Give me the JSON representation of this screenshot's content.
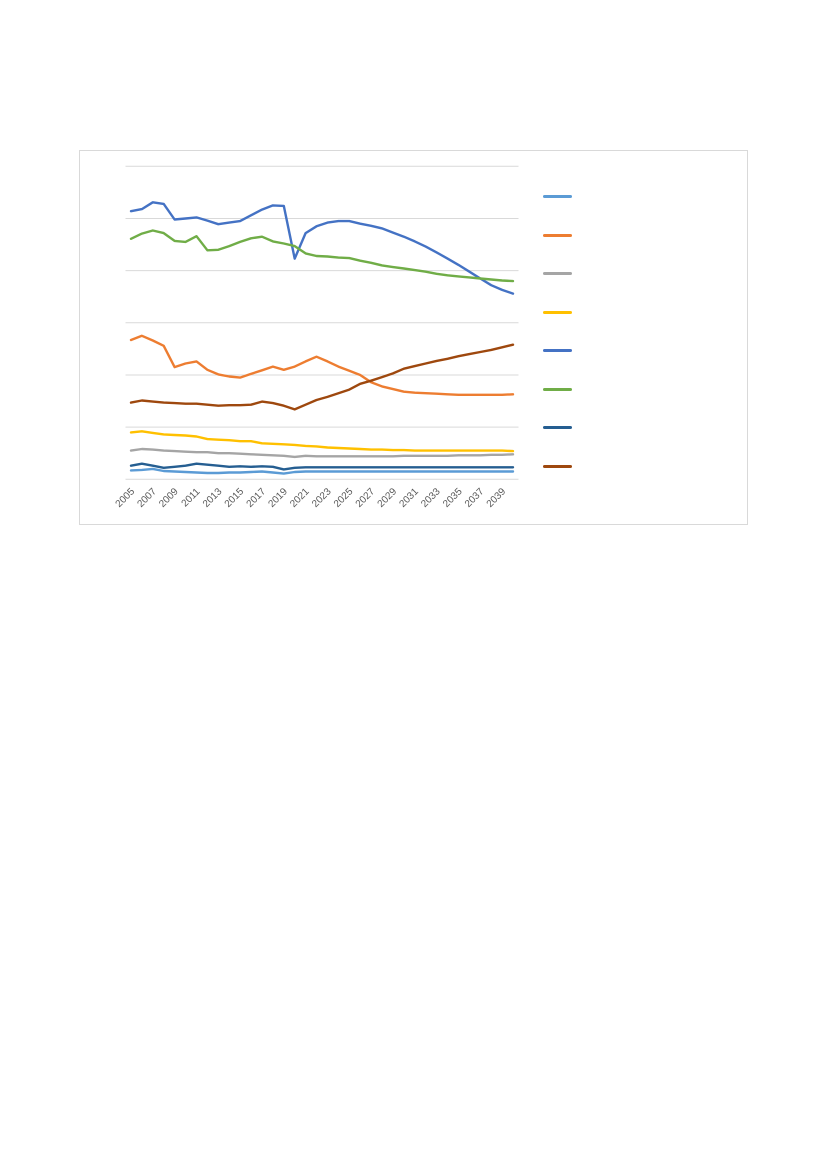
{
  "page": {
    "background": "#FFFFFF"
  },
  "chart_panel": {
    "border_color": "#D9D9D9",
    "background": "#FFFFFF"
  },
  "chart_data": {
    "type": "line",
    "title": "",
    "xlabel": "",
    "ylabel": "",
    "x_years": [
      2005,
      2006,
      2007,
      2008,
      2009,
      2010,
      2011,
      2012,
      2013,
      2014,
      2015,
      2016,
      2017,
      2018,
      2019,
      2020,
      2021,
      2022,
      2023,
      2024,
      2025,
      2026,
      2027,
      2028,
      2029,
      2030,
      2031,
      2032,
      2033,
      2034,
      2035,
      2036,
      2037,
      2038,
      2039,
      2040
    ],
    "x_tick_labels": [
      "2005",
      "2007",
      "2009",
      "2011",
      "2013",
      "2015",
      "2017",
      "2019",
      "2021",
      "2023",
      "2025",
      "2027",
      "2029",
      "2031",
      "2033",
      "2035",
      "2037",
      "2039"
    ],
    "x_tick_every": 2,
    "y_axis": {
      "min": 0,
      "max": 6,
      "gridline_step": 1,
      "labels_visible": false,
      "note": "no numeric y-axis labels shown; values estimated in gridline units (1 unit = one gridline interval)"
    },
    "grid": {
      "horizontal": true,
      "vertical": false,
      "color": "#D9D9D9"
    },
    "axis_line_color": "#D9D9D9",
    "tick_label_color": "#595959",
    "legend": {
      "position": "right",
      "labels_visible": false
    },
    "series": [
      {
        "name": "light-blue-series",
        "legend_label": "",
        "color": "#5B9BD5",
        "values": [
          0.17,
          0.18,
          0.2,
          0.16,
          0.15,
          0.14,
          0.13,
          0.12,
          0.12,
          0.13,
          0.13,
          0.14,
          0.15,
          0.13,
          0.11,
          0.14,
          0.15,
          0.15,
          0.15,
          0.15,
          0.15,
          0.15,
          0.15,
          0.15,
          0.15,
          0.15,
          0.15,
          0.15,
          0.15,
          0.15,
          0.15,
          0.15,
          0.15,
          0.15,
          0.15,
          0.15
        ]
      },
      {
        "name": "orange-series",
        "legend_label": "",
        "color": "#ED7D31",
        "values": [
          2.67,
          2.75,
          2.66,
          2.56,
          2.15,
          2.22,
          2.26,
          2.1,
          2.01,
          1.97,
          1.95,
          2.02,
          2.09,
          2.16,
          2.1,
          2.16,
          2.26,
          2.35,
          2.26,
          2.16,
          2.08,
          2.0,
          1.86,
          1.78,
          1.73,
          1.68,
          1.66,
          1.65,
          1.64,
          1.63,
          1.62,
          1.62,
          1.62,
          1.62,
          1.62,
          1.63
        ]
      },
      {
        "name": "gray-series",
        "legend_label": "",
        "color": "#A5A5A5",
        "values": [
          0.55,
          0.58,
          0.57,
          0.55,
          0.54,
          0.53,
          0.52,
          0.52,
          0.5,
          0.5,
          0.49,
          0.48,
          0.47,
          0.46,
          0.45,
          0.43,
          0.45,
          0.44,
          0.44,
          0.44,
          0.44,
          0.44,
          0.44,
          0.44,
          0.44,
          0.45,
          0.45,
          0.45,
          0.45,
          0.45,
          0.46,
          0.46,
          0.46,
          0.47,
          0.47,
          0.48
        ]
      },
      {
        "name": "yellow-series",
        "legend_label": "",
        "color": "#FFC000",
        "values": [
          0.9,
          0.92,
          0.89,
          0.86,
          0.85,
          0.84,
          0.82,
          0.77,
          0.76,
          0.75,
          0.73,
          0.73,
          0.69,
          0.68,
          0.67,
          0.66,
          0.64,
          0.63,
          0.61,
          0.6,
          0.59,
          0.58,
          0.57,
          0.57,
          0.56,
          0.56,
          0.55,
          0.55,
          0.55,
          0.55,
          0.55,
          0.55,
          0.55,
          0.55,
          0.55,
          0.54
        ]
      },
      {
        "name": "blue-series",
        "legend_label": "",
        "color": "#4472C4",
        "values": [
          5.14,
          5.18,
          5.31,
          5.28,
          4.98,
          5.0,
          5.02,
          4.96,
          4.89,
          4.92,
          4.95,
          5.06,
          5.17,
          5.25,
          5.24,
          4.23,
          4.72,
          4.85,
          4.92,
          4.95,
          4.95,
          4.9,
          4.86,
          4.81,
          4.73,
          4.65,
          4.56,
          4.46,
          4.35,
          4.23,
          4.11,
          3.98,
          3.85,
          3.72,
          3.63,
          3.56
        ]
      },
      {
        "name": "green-series",
        "legend_label": "",
        "color": "#70AD47",
        "values": [
          4.61,
          4.71,
          4.77,
          4.72,
          4.57,
          4.55,
          4.66,
          4.39,
          4.4,
          4.47,
          4.55,
          4.62,
          4.65,
          4.56,
          4.52,
          4.47,
          4.33,
          4.28,
          4.27,
          4.25,
          4.24,
          4.19,
          4.15,
          4.1,
          4.07,
          4.04,
          4.01,
          3.98,
          3.94,
          3.91,
          3.89,
          3.87,
          3.85,
          3.83,
          3.81,
          3.8
        ]
      },
      {
        "name": "dark-blue-series",
        "legend_label": "",
        "color": "#255E91",
        "values": [
          0.26,
          0.3,
          0.26,
          0.22,
          0.24,
          0.26,
          0.3,
          0.28,
          0.26,
          0.24,
          0.25,
          0.24,
          0.25,
          0.24,
          0.19,
          0.22,
          0.23,
          0.23,
          0.23,
          0.23,
          0.23,
          0.23,
          0.23,
          0.23,
          0.23,
          0.23,
          0.23,
          0.23,
          0.23,
          0.23,
          0.23,
          0.23,
          0.23,
          0.23,
          0.23,
          0.23
        ]
      },
      {
        "name": "dark-brown-series",
        "legend_label": "",
        "color": "#9E480E",
        "values": [
          1.47,
          1.51,
          1.49,
          1.47,
          1.46,
          1.45,
          1.45,
          1.43,
          1.41,
          1.42,
          1.42,
          1.43,
          1.49,
          1.46,
          1.41,
          1.34,
          1.43,
          1.52,
          1.58,
          1.65,
          1.72,
          1.83,
          1.89,
          1.96,
          2.03,
          2.12,
          2.17,
          2.22,
          2.27,
          2.31,
          2.36,
          2.4,
          2.44,
          2.48,
          2.53,
          2.58
        ]
      }
    ]
  }
}
